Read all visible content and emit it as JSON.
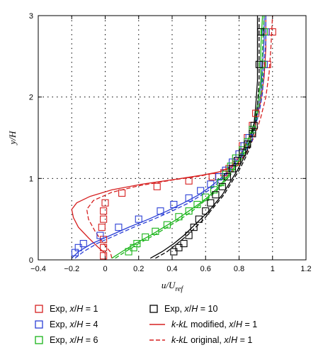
{
  "chart_data": {
    "type": "line",
    "xlabel": "u/U",
    "xlabel_sub": "ref",
    "ylabel": "y/H",
    "xlim": [
      -0.4,
      1.2
    ],
    "ylim": [
      0,
      3
    ],
    "xticks": [
      "−0.4",
      "−0.2",
      "0",
      "0.2",
      "0.4",
      "0.6",
      "0.8",
      "1",
      "1.2"
    ],
    "yticks": [
      "0",
      "1",
      "2",
      "3"
    ],
    "grid": "dotted",
    "legend_position": "bottom",
    "colors": {
      "x1": "#d62020",
      "x4": "#2b3fd6",
      "x6": "#19b419",
      "x10": "#000000"
    },
    "series": [
      {
        "name": "Exp, x/H = 1",
        "kind": "markers",
        "color_key": "x1",
        "points": [
          [
            -0.01,
            0.05
          ],
          [
            -0.01,
            0.15
          ],
          [
            -0.01,
            0.25
          ],
          [
            -0.02,
            0.4
          ],
          [
            -0.01,
            0.5
          ],
          [
            -0.01,
            0.6
          ],
          [
            0.0,
            0.7
          ],
          [
            0.1,
            0.82
          ],
          [
            0.31,
            0.9
          ],
          [
            0.5,
            0.97
          ],
          [
            0.64,
            1.02
          ],
          [
            0.71,
            1.07
          ],
          [
            0.74,
            1.12
          ],
          [
            0.78,
            1.2
          ],
          [
            0.8,
            1.3
          ],
          [
            0.82,
            1.4
          ],
          [
            0.85,
            1.5
          ],
          [
            0.88,
            1.65
          ],
          [
            0.9,
            1.8
          ],
          [
            0.97,
            2.4
          ],
          [
            1.0,
            2.8
          ]
        ]
      },
      {
        "name": "Exp, x/H = 4",
        "kind": "markers",
        "color_key": "x4",
        "points": [
          [
            -0.18,
            0.09
          ],
          [
            -0.16,
            0.15
          ],
          [
            -0.13,
            0.2
          ],
          [
            -0.03,
            0.3
          ],
          [
            0.08,
            0.4
          ],
          [
            0.2,
            0.5
          ],
          [
            0.33,
            0.6
          ],
          [
            0.41,
            0.68
          ],
          [
            0.5,
            0.76
          ],
          [
            0.57,
            0.85
          ],
          [
            0.63,
            0.93
          ],
          [
            0.68,
            1.02
          ],
          [
            0.72,
            1.1
          ],
          [
            0.76,
            1.2
          ],
          [
            0.8,
            1.3
          ],
          [
            0.83,
            1.4
          ],
          [
            0.86,
            1.5
          ],
          [
            0.88,
            1.6
          ],
          [
            0.95,
            2.4
          ],
          [
            0.96,
            2.8
          ]
        ]
      },
      {
        "name": "Exp, x/H = 6",
        "kind": "markers",
        "color_key": "x6",
        "points": [
          [
            0.14,
            0.1
          ],
          [
            0.17,
            0.15
          ],
          [
            0.19,
            0.2
          ],
          [
            0.24,
            0.28
          ],
          [
            0.3,
            0.35
          ],
          [
            0.37,
            0.43
          ],
          [
            0.44,
            0.53
          ],
          [
            0.5,
            0.6
          ],
          [
            0.55,
            0.68
          ],
          [
            0.6,
            0.77
          ],
          [
            0.65,
            0.86
          ],
          [
            0.69,
            0.95
          ],
          [
            0.72,
            1.05
          ],
          [
            0.75,
            1.15
          ],
          [
            0.78,
            1.25
          ],
          [
            0.82,
            1.35
          ],
          [
            0.85,
            1.45
          ],
          [
            0.88,
            1.6
          ],
          [
            0.94,
            2.4
          ],
          [
            0.95,
            2.8
          ]
        ]
      },
      {
        "name": "Exp, x/H = 10",
        "kind": "markers",
        "color_key": "x10",
        "points": [
          [
            0.41,
            0.1
          ],
          [
            0.44,
            0.15
          ],
          [
            0.47,
            0.2
          ],
          [
            0.5,
            0.3
          ],
          [
            0.53,
            0.4
          ],
          [
            0.56,
            0.5
          ],
          [
            0.6,
            0.6
          ],
          [
            0.63,
            0.7
          ],
          [
            0.66,
            0.8
          ],
          [
            0.7,
            0.9
          ],
          [
            0.73,
            1.02
          ],
          [
            0.76,
            1.12
          ],
          [
            0.79,
            1.22
          ],
          [
            0.82,
            1.32
          ],
          [
            0.85,
            1.42
          ],
          [
            0.88,
            1.55
          ],
          [
            0.89,
            1.65
          ],
          [
            0.92,
            2.4
          ],
          [
            0.93,
            2.8
          ]
        ]
      },
      {
        "name": "k-kL modified, x/H = 1",
        "kind": "line",
        "dash": "solid",
        "color_key": "x1",
        "points": [
          [
            0.0,
            0.02
          ],
          [
            0.0,
            0.08
          ],
          [
            -0.04,
            0.15
          ],
          [
            -0.1,
            0.27
          ],
          [
            -0.16,
            0.4
          ],
          [
            -0.19,
            0.52
          ],
          [
            -0.2,
            0.62
          ],
          [
            -0.17,
            0.7
          ],
          [
            -0.09,
            0.78
          ],
          [
            0.04,
            0.86
          ],
          [
            0.22,
            0.93
          ],
          [
            0.42,
            0.99
          ],
          [
            0.58,
            1.04
          ],
          [
            0.68,
            1.08
          ],
          [
            0.74,
            1.13
          ],
          [
            0.78,
            1.2
          ],
          [
            0.81,
            1.3
          ],
          [
            0.84,
            1.42
          ],
          [
            0.87,
            1.55
          ],
          [
            0.9,
            1.72
          ],
          [
            0.93,
            1.95
          ],
          [
            0.95,
            2.25
          ],
          [
            0.96,
            2.6
          ],
          [
            0.96,
            3.0
          ]
        ]
      },
      {
        "name": "k-kL original, x/H = 1",
        "kind": "line",
        "dash": "dashed",
        "color_key": "x1",
        "points": [
          [
            0.04,
            0.02
          ],
          [
            0.03,
            0.1
          ],
          [
            -0.01,
            0.2
          ],
          [
            -0.06,
            0.35
          ],
          [
            -0.1,
            0.5
          ],
          [
            -0.11,
            0.62
          ],
          [
            -0.07,
            0.73
          ],
          [
            0.04,
            0.83
          ],
          [
            0.2,
            0.91
          ],
          [
            0.4,
            0.98
          ],
          [
            0.57,
            1.03
          ],
          [
            0.68,
            1.08
          ],
          [
            0.75,
            1.13
          ],
          [
            0.8,
            1.2
          ],
          [
            0.84,
            1.3
          ],
          [
            0.87,
            1.42
          ],
          [
            0.9,
            1.56
          ],
          [
            0.93,
            1.75
          ],
          [
            0.96,
            2.0
          ],
          [
            0.98,
            2.3
          ],
          [
            0.99,
            2.6
          ],
          [
            1.0,
            3.0
          ]
        ]
      },
      {
        "name": "",
        "kind": "line",
        "dash": "solid",
        "color_key": "x4",
        "points": [
          [
            -0.2,
            0.02
          ],
          [
            -0.16,
            0.1
          ],
          [
            -0.08,
            0.2
          ],
          [
            0.03,
            0.3
          ],
          [
            0.14,
            0.4
          ],
          [
            0.26,
            0.5
          ],
          [
            0.37,
            0.6
          ],
          [
            0.47,
            0.7
          ],
          [
            0.56,
            0.8
          ],
          [
            0.63,
            0.9
          ],
          [
            0.69,
            1.0
          ],
          [
            0.74,
            1.1
          ],
          [
            0.78,
            1.2
          ],
          [
            0.82,
            1.32
          ],
          [
            0.85,
            1.45
          ],
          [
            0.88,
            1.6
          ],
          [
            0.91,
            1.8
          ],
          [
            0.93,
            2.05
          ],
          [
            0.94,
            2.4
          ],
          [
            0.95,
            2.7
          ],
          [
            0.95,
            3.0
          ]
        ]
      },
      {
        "name": "",
        "kind": "line",
        "dash": "dashed",
        "color_key": "x4",
        "points": [
          [
            -0.18,
            0.02
          ],
          [
            -0.13,
            0.1
          ],
          [
            -0.05,
            0.2
          ],
          [
            0.06,
            0.3
          ],
          [
            0.17,
            0.4
          ],
          [
            0.29,
            0.5
          ],
          [
            0.4,
            0.6
          ],
          [
            0.5,
            0.7
          ],
          [
            0.58,
            0.8
          ],
          [
            0.65,
            0.9
          ],
          [
            0.7,
            1.0
          ],
          [
            0.75,
            1.1
          ],
          [
            0.79,
            1.2
          ],
          [
            0.83,
            1.32
          ],
          [
            0.86,
            1.45
          ],
          [
            0.89,
            1.6
          ],
          [
            0.92,
            1.8
          ],
          [
            0.94,
            2.05
          ],
          [
            0.95,
            2.4
          ],
          [
            0.96,
            2.7
          ],
          [
            0.96,
            3.0
          ]
        ]
      },
      {
        "name": "",
        "kind": "line",
        "dash": "solid",
        "color_key": "x6",
        "points": [
          [
            0.04,
            0.02
          ],
          [
            0.1,
            0.1
          ],
          [
            0.18,
            0.2
          ],
          [
            0.27,
            0.3
          ],
          [
            0.35,
            0.4
          ],
          [
            0.43,
            0.5
          ],
          [
            0.5,
            0.6
          ],
          [
            0.57,
            0.7
          ],
          [
            0.63,
            0.8
          ],
          [
            0.68,
            0.9
          ],
          [
            0.72,
            1.0
          ],
          [
            0.76,
            1.1
          ],
          [
            0.8,
            1.22
          ],
          [
            0.83,
            1.35
          ],
          [
            0.86,
            1.5
          ],
          [
            0.89,
            1.68
          ],
          [
            0.91,
            1.9
          ],
          [
            0.93,
            2.2
          ],
          [
            0.93,
            2.6
          ],
          [
            0.94,
            3.0
          ]
        ]
      },
      {
        "name": "",
        "kind": "line",
        "dash": "dashed",
        "color_key": "x6",
        "points": [
          [
            0.06,
            0.02
          ],
          [
            0.12,
            0.1
          ],
          [
            0.2,
            0.2
          ],
          [
            0.29,
            0.3
          ],
          [
            0.37,
            0.4
          ],
          [
            0.45,
            0.5
          ],
          [
            0.52,
            0.6
          ],
          [
            0.58,
            0.7
          ],
          [
            0.64,
            0.8
          ],
          [
            0.69,
            0.9
          ],
          [
            0.73,
            1.0
          ],
          [
            0.77,
            1.1
          ],
          [
            0.81,
            1.22
          ],
          [
            0.84,
            1.35
          ],
          [
            0.87,
            1.5
          ],
          [
            0.9,
            1.68
          ],
          [
            0.92,
            1.9
          ],
          [
            0.94,
            2.2
          ],
          [
            0.94,
            2.6
          ],
          [
            0.95,
            3.0
          ]
        ]
      },
      {
        "name": "",
        "kind": "line",
        "dash": "solid",
        "color_key": "x10",
        "points": [
          [
            0.27,
            0.02
          ],
          [
            0.34,
            0.1
          ],
          [
            0.41,
            0.2
          ],
          [
            0.47,
            0.3
          ],
          [
            0.52,
            0.4
          ],
          [
            0.57,
            0.5
          ],
          [
            0.62,
            0.6
          ],
          [
            0.66,
            0.7
          ],
          [
            0.7,
            0.8
          ],
          [
            0.73,
            0.9
          ],
          [
            0.76,
            1.0
          ],
          [
            0.79,
            1.1
          ],
          [
            0.82,
            1.22
          ],
          [
            0.85,
            1.35
          ],
          [
            0.87,
            1.5
          ],
          [
            0.89,
            1.68
          ],
          [
            0.9,
            1.9
          ],
          [
            0.91,
            2.2
          ],
          [
            0.91,
            2.6
          ],
          [
            0.91,
            3.0
          ]
        ]
      },
      {
        "name": "",
        "kind": "line",
        "dash": "dashed",
        "color_key": "x10",
        "points": [
          [
            0.3,
            0.02
          ],
          [
            0.37,
            0.1
          ],
          [
            0.43,
            0.2
          ],
          [
            0.49,
            0.3
          ],
          [
            0.54,
            0.4
          ],
          [
            0.59,
            0.5
          ],
          [
            0.63,
            0.6
          ],
          [
            0.67,
            0.7
          ],
          [
            0.71,
            0.8
          ],
          [
            0.74,
            0.9
          ],
          [
            0.77,
            1.0
          ],
          [
            0.8,
            1.1
          ],
          [
            0.83,
            1.22
          ],
          [
            0.86,
            1.35
          ],
          [
            0.88,
            1.5
          ],
          [
            0.9,
            1.68
          ],
          [
            0.91,
            1.9
          ],
          [
            0.92,
            2.2
          ],
          [
            0.92,
            2.6
          ],
          [
            0.92,
            3.0
          ]
        ]
      }
    ],
    "legend": [
      {
        "label": "Exp, x/H = 1",
        "symbol": "square",
        "color_key": "x1"
      },
      {
        "label": "Exp, x/H = 10",
        "symbol": "square",
        "color_key": "x10"
      },
      {
        "label": "Exp, x/H = 4",
        "symbol": "square",
        "color_key": "x4"
      },
      {
        "label": "k-kL modified, x/H = 1",
        "symbol": "solid-line",
        "color_key": "x1"
      },
      {
        "label": "Exp, x/H = 6",
        "symbol": "square",
        "color_key": "x6"
      },
      {
        "label": "k-kL original, x/H = 1",
        "symbol": "dashed-line",
        "color_key": "x1"
      }
    ]
  }
}
